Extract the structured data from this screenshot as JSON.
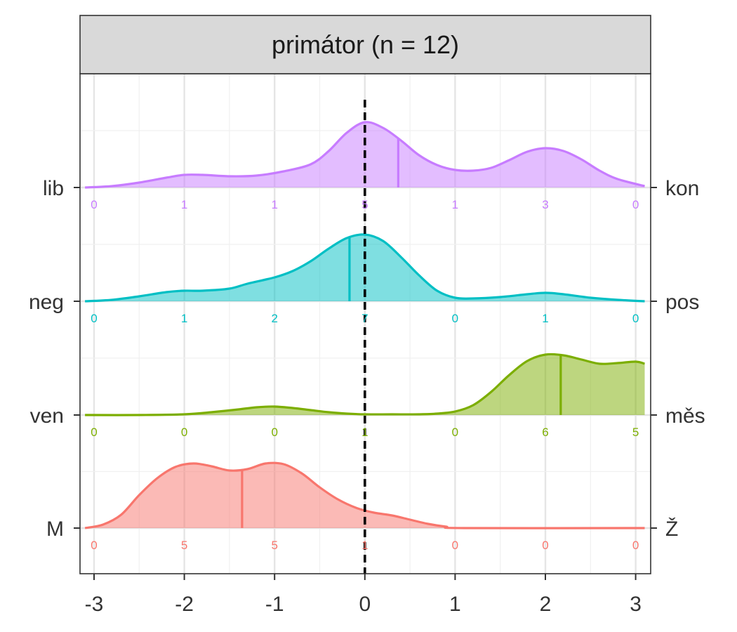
{
  "chart_data": {
    "type": "ridgeline-density",
    "title": "primátor (n = 12)",
    "xlim": [
      -3.1,
      3.1
    ],
    "x_ticks": [
      -3,
      -2,
      -1,
      0,
      1,
      2,
      3
    ],
    "x_tick_labels": [
      "-3",
      "-2",
      "-1",
      "0",
      "1",
      "2",
      "3"
    ],
    "count_positions": [
      -3,
      -2,
      -1,
      0,
      1,
      2,
      3
    ],
    "reference_line_x": 0,
    "grid": true,
    "series": [
      {
        "left_label": "lib",
        "right_label": "kon",
        "color": "#C77CFF",
        "mean": 0.37,
        "counts": [
          "0",
          "1",
          "1",
          "5",
          "1",
          "3",
          "0"
        ],
        "density": [
          [
            -3.1,
            0.0
          ],
          [
            -2.8,
            0.02
          ],
          [
            -2.5,
            0.07
          ],
          [
            -2.2,
            0.14
          ],
          [
            -2.0,
            0.18
          ],
          [
            -1.8,
            0.18
          ],
          [
            -1.5,
            0.16
          ],
          [
            -1.2,
            0.17
          ],
          [
            -0.9,
            0.23
          ],
          [
            -0.6,
            0.33
          ],
          [
            -0.4,
            0.52
          ],
          [
            -0.2,
            0.78
          ],
          [
            0.0,
            0.93
          ],
          [
            0.2,
            0.85
          ],
          [
            0.4,
            0.67
          ],
          [
            0.6,
            0.46
          ],
          [
            0.8,
            0.32
          ],
          [
            1.0,
            0.25
          ],
          [
            1.2,
            0.24
          ],
          [
            1.4,
            0.28
          ],
          [
            1.6,
            0.39
          ],
          [
            1.8,
            0.51
          ],
          [
            2.0,
            0.56
          ],
          [
            2.2,
            0.52
          ],
          [
            2.4,
            0.4
          ],
          [
            2.6,
            0.24
          ],
          [
            2.8,
            0.12
          ],
          [
            3.1,
            0.02
          ]
        ]
      },
      {
        "left_label": "neg",
        "right_label": "pos",
        "color": "#00BFC4",
        "mean": -0.17,
        "counts": [
          "0",
          "1",
          "2",
          "7",
          "0",
          "1",
          "0"
        ],
        "density": [
          [
            -3.1,
            0.0
          ],
          [
            -2.8,
            0.02
          ],
          [
            -2.5,
            0.07
          ],
          [
            -2.2,
            0.13
          ],
          [
            -2.0,
            0.15
          ],
          [
            -1.8,
            0.15
          ],
          [
            -1.5,
            0.18
          ],
          [
            -1.3,
            0.25
          ],
          [
            -1.0,
            0.34
          ],
          [
            -0.8,
            0.43
          ],
          [
            -0.6,
            0.57
          ],
          [
            -0.4,
            0.75
          ],
          [
            -0.2,
            0.9
          ],
          [
            0.0,
            0.95
          ],
          [
            0.2,
            0.86
          ],
          [
            0.4,
            0.63
          ],
          [
            0.6,
            0.37
          ],
          [
            0.8,
            0.15
          ],
          [
            1.0,
            0.05
          ],
          [
            1.2,
            0.04
          ],
          [
            1.5,
            0.06
          ],
          [
            1.8,
            0.1
          ],
          [
            2.0,
            0.12
          ],
          [
            2.2,
            0.1
          ],
          [
            2.5,
            0.05
          ],
          [
            2.8,
            0.02
          ],
          [
            3.1,
            0.0
          ]
        ]
      },
      {
        "left_label": "ven",
        "right_label": "měs",
        "color": "#7CAE00",
        "mean": 2.17,
        "counts": [
          "0",
          "0",
          "0",
          "1",
          "0",
          "6",
          "5"
        ],
        "density": [
          [
            -3.1,
            0.0
          ],
          [
            -2.5,
            0.0
          ],
          [
            -2.0,
            0.01
          ],
          [
            -1.7,
            0.04
          ],
          [
            -1.4,
            0.08
          ],
          [
            -1.2,
            0.11
          ],
          [
            -1.0,
            0.12
          ],
          [
            -0.8,
            0.1
          ],
          [
            -0.6,
            0.07
          ],
          [
            -0.4,
            0.04
          ],
          [
            -0.2,
            0.02
          ],
          [
            0.0,
            0.01
          ],
          [
            0.3,
            0.01
          ],
          [
            0.6,
            0.01
          ],
          [
            0.8,
            0.02
          ],
          [
            1.0,
            0.05
          ],
          [
            1.2,
            0.14
          ],
          [
            1.4,
            0.33
          ],
          [
            1.6,
            0.57
          ],
          [
            1.8,
            0.77
          ],
          [
            2.0,
            0.86
          ],
          [
            2.2,
            0.85
          ],
          [
            2.4,
            0.79
          ],
          [
            2.6,
            0.73
          ],
          [
            2.8,
            0.74
          ],
          [
            3.0,
            0.76
          ],
          [
            3.1,
            0.73
          ]
        ]
      },
      {
        "left_label": "M",
        "right_label": "Ž",
        "color": "#F8766D",
        "mean": -1.36,
        "counts": [
          "0",
          "5",
          "5",
          "1",
          "0",
          "0",
          "0"
        ],
        "density": [
          [
            -3.1,
            0.0
          ],
          [
            -2.9,
            0.05
          ],
          [
            -2.7,
            0.19
          ],
          [
            -2.5,
            0.47
          ],
          [
            -2.3,
            0.71
          ],
          [
            -2.1,
            0.87
          ],
          [
            -1.9,
            0.92
          ],
          [
            -1.7,
            0.88
          ],
          [
            -1.5,
            0.82
          ],
          [
            -1.3,
            0.84
          ],
          [
            -1.1,
            0.92
          ],
          [
            -0.9,
            0.91
          ],
          [
            -0.7,
            0.78
          ],
          [
            -0.5,
            0.58
          ],
          [
            -0.3,
            0.41
          ],
          [
            -0.1,
            0.29
          ],
          [
            0.1,
            0.22
          ],
          [
            0.3,
            0.18
          ],
          [
            0.5,
            0.12
          ],
          [
            0.7,
            0.06
          ],
          [
            0.9,
            0.02
          ],
          [
            1.1,
            0.0
          ],
          [
            3.1,
            0.0
          ]
        ]
      }
    ]
  }
}
